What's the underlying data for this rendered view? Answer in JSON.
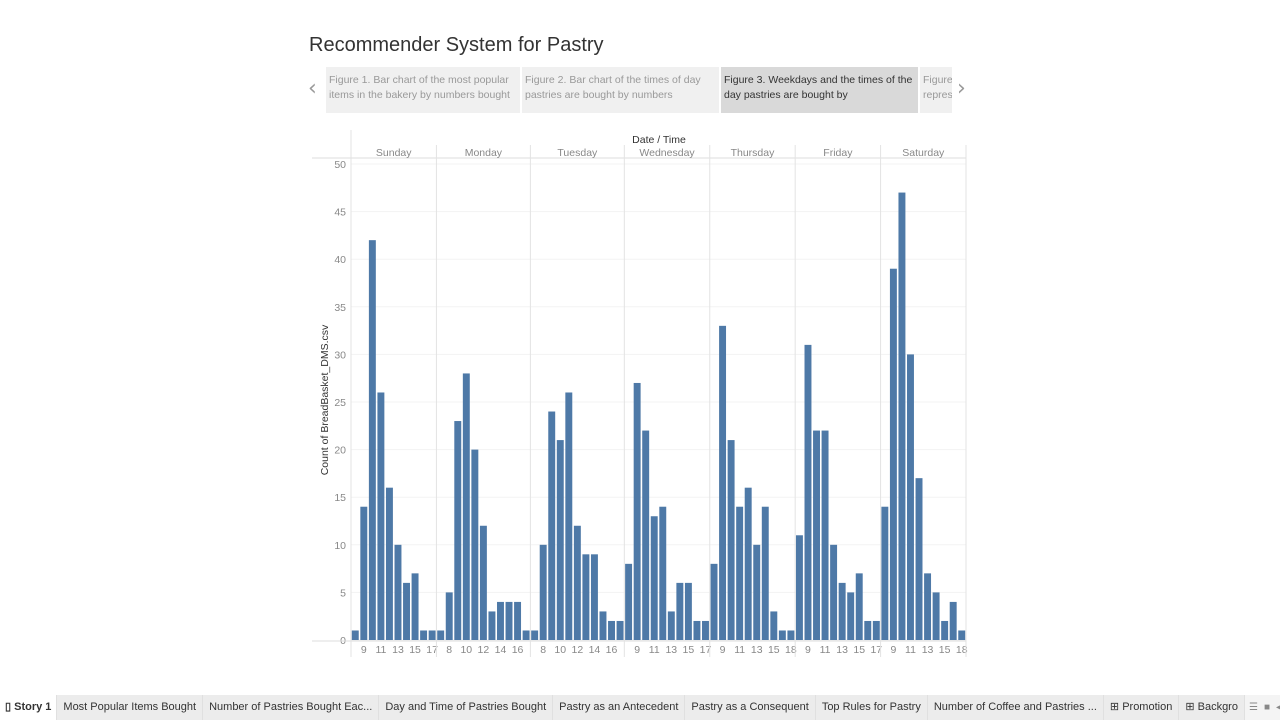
{
  "story": {
    "title": "Recommender System for Pastry",
    "captions": [
      {
        "text": "Figure 1. Bar chart of the most popular items in the bakery by numbers bought",
        "selected": false
      },
      {
        "text": "Figure 2. Bar chart of the times of day pastries are bought by numbers",
        "selected": false
      },
      {
        "text": "Figure 3. Weekdays and the times of the day pastries are bought by",
        "selected": true
      },
      {
        "text": "Figure represe",
        "selected": false
      }
    ],
    "prev_icon": "chevron-left-icon",
    "next_icon": "chevron-right-icon"
  },
  "bottom_tabs": {
    "story_label": "Story 1",
    "sheets": [
      "Most Popular Items Bought",
      "Number of Pastries Bought Eac...",
      "Day and Time of Pastries Bought",
      "Pastry as an Antecedent",
      "Pastry as a Consequent",
      "Top Rules for Pastry",
      "Number of Coffee and Pastries ..."
    ],
    "dashboards": [
      "Promotion",
      "Backgro"
    ]
  },
  "chart_data": {
    "type": "bar",
    "header": "Date / Time",
    "ylabel": "Count of BreadBasket_DMS.csv",
    "ylim": [
      0,
      50
    ],
    "yticks": [
      0,
      5,
      10,
      15,
      20,
      25,
      30,
      35,
      40,
      45,
      50
    ],
    "color": "#4e79a7",
    "grid": true,
    "panels": [
      {
        "day": "Sunday",
        "hours": [
          8,
          9,
          10,
          11,
          12,
          13,
          14,
          15,
          16,
          17
        ],
        "values": [
          1,
          14,
          42,
          26,
          16,
          10,
          6,
          7,
          1,
          1
        ],
        "tick_labels": [
          9,
          11,
          13,
          15,
          17
        ]
      },
      {
        "day": "Monday",
        "hours": [
          7,
          8,
          9,
          10,
          11,
          12,
          13,
          14,
          15,
          16,
          17
        ],
        "values": [
          1,
          5,
          23,
          28,
          20,
          12,
          3,
          4,
          4,
          4,
          1
        ],
        "tick_labels": [
          8,
          10,
          12,
          14,
          16
        ]
      },
      {
        "day": "Tuesday",
        "hours": [
          7,
          8,
          9,
          10,
          11,
          12,
          13,
          14,
          15,
          16,
          17
        ],
        "values": [
          1,
          10,
          24,
          21,
          26,
          12,
          9,
          9,
          3,
          2,
          2
        ],
        "tick_labels": [
          8,
          10,
          12,
          14,
          16
        ]
      },
      {
        "day": "Wednesday",
        "hours": [
          8,
          9,
          10,
          11,
          12,
          13,
          14,
          15,
          16,
          17
        ],
        "values": [
          8,
          27,
          22,
          13,
          14,
          3,
          6,
          6,
          2,
          2
        ],
        "tick_labels": [
          9,
          11,
          13,
          15,
          17
        ]
      },
      {
        "day": "Thursday",
        "hours": [
          8,
          9,
          10,
          11,
          12,
          13,
          14,
          15,
          16,
          18
        ],
        "values": [
          8,
          33,
          21,
          14,
          16,
          10,
          14,
          3,
          1,
          1
        ],
        "tick_labels": [
          9,
          11,
          13,
          15,
          18
        ]
      },
      {
        "day": "Friday",
        "hours": [
          8,
          9,
          10,
          11,
          12,
          13,
          14,
          15,
          16,
          17
        ],
        "values": [
          11,
          31,
          22,
          22,
          10,
          6,
          5,
          7,
          2,
          2
        ],
        "tick_labels": [
          9,
          11,
          13,
          15,
          17
        ]
      },
      {
        "day": "Saturday",
        "hours": [
          8,
          9,
          10,
          11,
          12,
          13,
          14,
          15,
          16,
          18
        ],
        "values": [
          14,
          39,
          47,
          30,
          17,
          7,
          5,
          2,
          4,
          1
        ],
        "tick_labels": [
          9,
          11,
          13,
          15,
          18
        ]
      }
    ]
  }
}
